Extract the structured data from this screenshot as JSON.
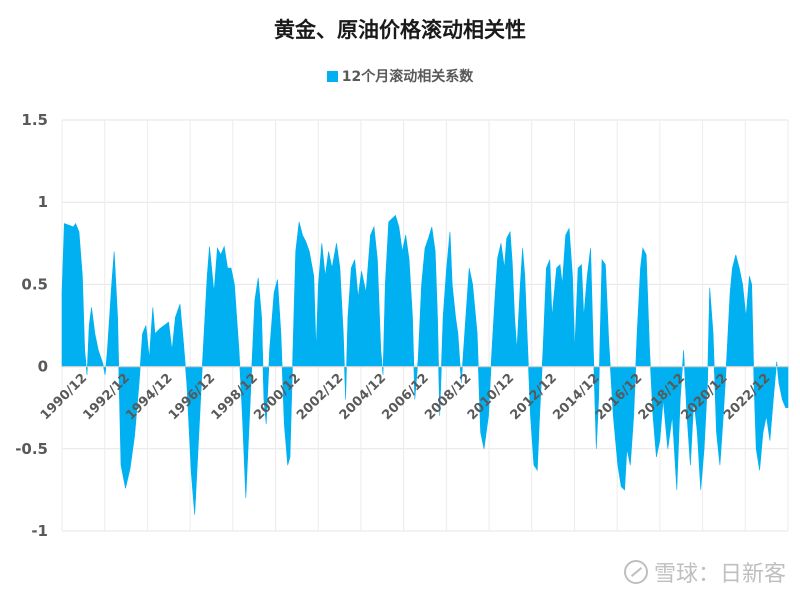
{
  "chart_data": {
    "type": "area",
    "title": "黄金、原油价格滚动相关性",
    "xlabel": "",
    "ylabel": "",
    "ylim": [
      -1,
      1.5
    ],
    "yticks": [
      "1.5",
      "1",
      "0.5",
      "0",
      "-0.5",
      "-1"
    ],
    "xticks": [
      "1990/12",
      "1992/12",
      "1994/12",
      "1996/12",
      "1998/12",
      "2000/12",
      "2002/12",
      "2004/12",
      "2006/12",
      "2008/12",
      "2010/12",
      "2012/12",
      "2014/12",
      "2016/12",
      "2018/12",
      "2020/12",
      "2022/12"
    ],
    "grid": true,
    "legend_position": "top",
    "series": [
      {
        "name": "12个月滚动相关系数",
        "color": "#00B0F0",
        "points": [
          [
            1990.0,
            0.45
          ],
          [
            1990.1,
            0.87
          ],
          [
            1990.3,
            0.86
          ],
          [
            1990.5,
            0.85
          ],
          [
            1990.6,
            0.87
          ],
          [
            1990.75,
            0.82
          ],
          [
            1990.9,
            0.55
          ],
          [
            1991.0,
            0.1
          ],
          [
            1991.1,
            -0.05
          ],
          [
            1991.2,
            0.25
          ],
          [
            1991.3,
            0.36
          ],
          [
            1991.45,
            0.2
          ],
          [
            1991.6,
            0.1
          ],
          [
            1991.8,
            0.02
          ],
          [
            1991.9,
            -0.05
          ],
          [
            1992.0,
            0.1
          ],
          [
            1992.2,
            0.52
          ],
          [
            1992.3,
            0.7
          ],
          [
            1992.45,
            0.3
          ],
          [
            1992.6,
            -0.6
          ],
          [
            1992.8,
            -0.74
          ],
          [
            1993.0,
            -0.62
          ],
          [
            1993.2,
            -0.42
          ],
          [
            1993.4,
            -0.1
          ],
          [
            1993.55,
            0.2
          ],
          [
            1993.7,
            0.25
          ],
          [
            1993.85,
            0.05
          ],
          [
            1994.0,
            0.36
          ],
          [
            1994.1,
            0.2
          ],
          [
            1994.3,
            0.23
          ],
          [
            1994.5,
            0.25
          ],
          [
            1994.7,
            0.27
          ],
          [
            1994.85,
            0.1
          ],
          [
            1995.0,
            0.3
          ],
          [
            1995.2,
            0.38
          ],
          [
            1995.35,
            0.15
          ],
          [
            1995.5,
            -0.1
          ],
          [
            1995.7,
            -0.65
          ],
          [
            1995.85,
            -0.9
          ],
          [
            1996.0,
            -0.5
          ],
          [
            1996.2,
            0.05
          ],
          [
            1996.4,
            0.55
          ],
          [
            1996.5,
            0.73
          ],
          [
            1996.7,
            0.45
          ],
          [
            1996.85,
            0.72
          ],
          [
            1997.0,
            0.68
          ],
          [
            1997.15,
            0.73
          ],
          [
            1997.3,
            0.6
          ],
          [
            1997.45,
            0.6
          ],
          [
            1997.6,
            0.5
          ],
          [
            1997.8,
            0.1
          ],
          [
            1997.95,
            -0.3
          ],
          [
            1998.1,
            -0.8
          ],
          [
            1998.3,
            -0.2
          ],
          [
            1998.5,
            0.4
          ],
          [
            1998.65,
            0.54
          ],
          [
            1998.8,
            0.3
          ],
          [
            1998.9,
            -0.2
          ],
          [
            1999.0,
            -0.35
          ],
          [
            1999.15,
            0.1
          ],
          [
            1999.35,
            0.45
          ],
          [
            1999.5,
            0.53
          ],
          [
            1999.65,
            0.2
          ],
          [
            1999.8,
            -0.35
          ],
          [
            1999.95,
            -0.6
          ],
          [
            2000.05,
            -0.55
          ],
          [
            2000.2,
            0.2
          ],
          [
            2000.3,
            0.7
          ],
          [
            2000.45,
            0.88
          ],
          [
            2000.6,
            0.8
          ],
          [
            2000.75,
            0.76
          ],
          [
            2000.9,
            0.7
          ],
          [
            2001.1,
            0.55
          ],
          [
            2001.2,
            0.1
          ],
          [
            2001.3,
            0.5
          ],
          [
            2001.45,
            0.75
          ],
          [
            2001.6,
            0.55
          ],
          [
            2001.75,
            0.7
          ],
          [
            2001.9,
            0.6
          ],
          [
            2002.1,
            0.75
          ],
          [
            2002.25,
            0.6
          ],
          [
            2002.4,
            0.2
          ],
          [
            2002.5,
            -0.2
          ],
          [
            2002.6,
            0.3
          ],
          [
            2002.75,
            0.6
          ],
          [
            2002.9,
            0.65
          ],
          [
            2003.05,
            0.42
          ],
          [
            2003.2,
            0.58
          ],
          [
            2003.4,
            0.45
          ],
          [
            2003.6,
            0.8
          ],
          [
            2003.75,
            0.85
          ],
          [
            2003.9,
            0.65
          ],
          [
            2004.05,
            0.1
          ],
          [
            2004.15,
            -0.05
          ],
          [
            2004.25,
            0.5
          ],
          [
            2004.4,
            0.88
          ],
          [
            2004.55,
            0.9
          ],
          [
            2004.7,
            0.92
          ],
          [
            2004.85,
            0.85
          ],
          [
            2005.0,
            0.7
          ],
          [
            2005.15,
            0.8
          ],
          [
            2005.3,
            0.65
          ],
          [
            2005.45,
            0.3
          ],
          [
            2005.55,
            -0.2
          ],
          [
            2005.7,
            0.05
          ],
          [
            2005.85,
            0.5
          ],
          [
            2006.0,
            0.72
          ],
          [
            2006.15,
            0.78
          ],
          [
            2006.3,
            0.85
          ],
          [
            2006.45,
            0.7
          ],
          [
            2006.55,
            0.3
          ],
          [
            2006.65,
            -0.3
          ],
          [
            2006.8,
            0.3
          ],
          [
            2006.95,
            0.6
          ],
          [
            2007.1,
            0.82
          ],
          [
            2007.2,
            0.5
          ],
          [
            2007.35,
            0.3
          ],
          [
            2007.45,
            0.2
          ],
          [
            2007.6,
            -0.1
          ],
          [
            2007.8,
            0.3
          ],
          [
            2007.95,
            0.6
          ],
          [
            2008.1,
            0.5
          ],
          [
            2008.3,
            0.2
          ],
          [
            2008.45,
            -0.4
          ],
          [
            2008.6,
            -0.5
          ],
          [
            2008.8,
            -0.3
          ],
          [
            2008.95,
            0.1
          ],
          [
            2009.1,
            0.45
          ],
          [
            2009.2,
            0.66
          ],
          [
            2009.35,
            0.75
          ],
          [
            2009.5,
            0.6
          ],
          [
            2009.6,
            0.78
          ],
          [
            2009.75,
            0.82
          ],
          [
            2009.85,
            0.63
          ],
          [
            2009.95,
            0.3
          ],
          [
            2010.05,
            0.1
          ],
          [
            2010.2,
            0.5
          ],
          [
            2010.3,
            0.72
          ],
          [
            2010.4,
            0.55
          ],
          [
            2010.5,
            0.2
          ],
          [
            2010.65,
            -0.3
          ],
          [
            2010.8,
            -0.6
          ],
          [
            2010.95,
            -0.63
          ],
          [
            2011.05,
            -0.3
          ],
          [
            2011.2,
            0.1
          ],
          [
            2011.35,
            0.6
          ],
          [
            2011.5,
            0.65
          ],
          [
            2011.6,
            0.3
          ],
          [
            2011.8,
            0.6
          ],
          [
            2011.95,
            0.62
          ],
          [
            2012.05,
            0.5
          ],
          [
            2012.2,
            0.8
          ],
          [
            2012.35,
            0.84
          ],
          [
            2012.5,
            0.55
          ],
          [
            2012.6,
            0.1
          ],
          [
            2012.75,
            0.6
          ],
          [
            2012.9,
            0.62
          ],
          [
            2013.0,
            0.3
          ],
          [
            2013.15,
            0.55
          ],
          [
            2013.3,
            0.72
          ],
          [
            2013.4,
            0.2
          ],
          [
            2013.55,
            -0.5
          ],
          [
            2013.65,
            -0.2
          ],
          [
            2013.8,
            0.65
          ],
          [
            2013.95,
            0.62
          ],
          [
            2014.1,
            0.15
          ],
          [
            2014.3,
            -0.3
          ],
          [
            2014.5,
            -0.6
          ],
          [
            2014.65,
            -0.73
          ],
          [
            2014.8,
            -0.75
          ],
          [
            2014.9,
            -0.5
          ],
          [
            2015.05,
            -0.6
          ],
          [
            2015.2,
            -0.3
          ],
          [
            2015.35,
            0.2
          ],
          [
            2015.5,
            0.6
          ],
          [
            2015.6,
            0.72
          ],
          [
            2015.75,
            0.68
          ],
          [
            2015.9,
            0.1
          ],
          [
            2016.05,
            -0.3
          ],
          [
            2016.2,
            -0.55
          ],
          [
            2016.35,
            -0.45
          ],
          [
            2016.5,
            -0.2
          ],
          [
            2016.7,
            -0.5
          ],
          [
            2016.9,
            -0.3
          ],
          [
            2017.1,
            -0.75
          ],
          [
            2017.25,
            -0.2
          ],
          [
            2017.4,
            0.1
          ],
          [
            2017.55,
            -0.3
          ],
          [
            2017.7,
            -0.6
          ],
          [
            2017.85,
            -0.2
          ],
          [
            2018.0,
            -0.4
          ],
          [
            2018.15,
            -0.75
          ],
          [
            2018.3,
            -0.5
          ],
          [
            2018.45,
            -0.1
          ],
          [
            2018.55,
            0.48
          ],
          [
            2018.7,
            0.2
          ],
          [
            2018.85,
            -0.4
          ],
          [
            2019.0,
            -0.6
          ],
          [
            2019.15,
            -0.3
          ],
          [
            2019.3,
            0.05
          ],
          [
            2019.45,
            0.45
          ],
          [
            2019.55,
            0.6
          ],
          [
            2019.7,
            0.68
          ],
          [
            2019.85,
            0.6
          ],
          [
            2020.0,
            0.5
          ],
          [
            2020.15,
            0.3
          ],
          [
            2020.3,
            0.55
          ],
          [
            2020.4,
            0.5
          ],
          [
            2020.5,
            -0.1
          ],
          [
            2020.6,
            -0.5
          ],
          [
            2020.75,
            -0.63
          ],
          [
            2020.9,
            -0.4
          ],
          [
            2021.05,
            -0.3
          ],
          [
            2021.2,
            -0.45
          ],
          [
            2021.35,
            -0.2
          ],
          [
            2021.5,
            0.03
          ],
          [
            2021.6,
            -0.1
          ],
          [
            2021.75,
            -0.2
          ],
          [
            2021.9,
            -0.25
          ],
          [
            2022.0,
            -0.25
          ]
        ]
      }
    ]
  }
}
